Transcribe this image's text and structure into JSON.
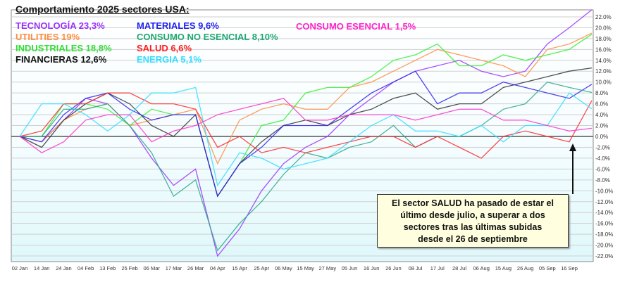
{
  "chart_data": {
    "type": "line",
    "title": "Comportamiento 2025 sectores USA:",
    "x": [
      "02 Jan",
      "14 Jan",
      "24 Jan",
      "04 Feb",
      "13 Feb",
      "25 Feb",
      "06 Mar",
      "17 Mar",
      "26 Mar",
      "04 Apr",
      "15 Apr",
      "25 Apr",
      "06 May",
      "15 May",
      "27 May",
      "05 Jun",
      "16 Jun",
      "26 Jun",
      "08 Jul",
      "17 Jul",
      "28 Jul",
      "06 Aug",
      "15 Aug",
      "26 Aug",
      "05 Sep",
      "16 Sep",
      ""
    ],
    "x_tick_labels": [
      "02 Jan",
      "14 Jan",
      "24 Jan",
      "04 Feb",
      "13 Feb",
      "25 Feb",
      "06 Mar",
      "17 Mar",
      "26 Mar",
      "04 Apr",
      "15 Apr",
      "25 Apr",
      "06 May",
      "15 May",
      "27 May",
      "05 Jun",
      "16 Jun",
      "26 Jun",
      "08 Jul",
      "17 Jul",
      "28 Jul",
      "06 Aug",
      "15 Aug",
      "26 Aug",
      "05 Sep",
      "16 Sep"
    ],
    "y_tick_labels": [
      "22.0%",
      "20.0%",
      "18.0%",
      "16.0%",
      "14.0%",
      "12.0%",
      "10.0%",
      "8.0%",
      "6.0%",
      "4.0%",
      "2.0%",
      "0.0%",
      "-2.0%",
      "-4.0%",
      "-6.0%",
      "-8.0%",
      "-10.0%",
      "-12.0%",
      "-14.0%",
      "-16.0%",
      "-18.0%",
      "-20.0%",
      "-22.0%"
    ],
    "ylim": [
      -23,
      23
    ],
    "xlabel": "",
    "ylabel": "",
    "grid": true,
    "series": [
      {
        "name": "TECNOLOGÍA 23,3%",
        "color": "#9b30ff",
        "values": [
          0,
          -1,
          3,
          7,
          6,
          2,
          -4,
          -9,
          -6,
          -22,
          -17,
          -10,
          -5,
          -2,
          0,
          4,
          7,
          10,
          12,
          13,
          14,
          12,
          11,
          12,
          17,
          20,
          23.3
        ]
      },
      {
        "name": "UTILITIES 19%",
        "color": "#ff8c40",
        "values": [
          0,
          -1,
          3,
          5,
          6,
          2,
          3,
          4,
          5,
          -5,
          3,
          5,
          6,
          5,
          5,
          9,
          10,
          12,
          14,
          16,
          15,
          14,
          13,
          11,
          16,
          17,
          19
        ]
      },
      {
        "name": "INDUSTRIALES 18,8%",
        "color": "#33ee33",
        "values": [
          0,
          0,
          6,
          6,
          5,
          2,
          5,
          4,
          4,
          -11,
          -5,
          2,
          3,
          8,
          9,
          9,
          11,
          14,
          15,
          17,
          13,
          13,
          15,
          14,
          15,
          16,
          18.8
        ]
      },
      {
        "name": "FINANCIERAS 12,6%",
        "color": "#333333",
        "values": [
          0,
          -2,
          3,
          6,
          8,
          6,
          2,
          0,
          4,
          -11,
          -5,
          -1,
          2,
          3,
          2,
          4,
          5,
          7,
          8,
          5,
          6,
          6,
          9,
          10,
          11,
          12,
          12.6
        ]
      },
      {
        "name": "MATERIALES 9,6%",
        "color": "#3322ee",
        "values": [
          0,
          -1,
          4,
          7,
          8,
          5,
          3,
          4,
          4,
          -11,
          -5,
          -2,
          2,
          2,
          2,
          5,
          8,
          10,
          12,
          6,
          8,
          8,
          10,
          9,
          8,
          7,
          9.6
        ]
      },
      {
        "name": "CONSUMO NO ESENCIAL 8,10%",
        "color": "#2aa88a",
        "values": [
          0,
          0,
          5,
          5,
          6,
          2,
          -3,
          -11,
          -8,
          -21,
          -16,
          -12,
          -7,
          -3,
          -4,
          -2,
          -1,
          2,
          -2,
          0,
          0,
          2,
          5,
          6,
          10,
          9,
          8.1
        ]
      },
      {
        "name": "SALUD 6,6%",
        "color": "#ff2a2a",
        "values": [
          0,
          1,
          6,
          6,
          8,
          8,
          6,
          6,
          5,
          -2,
          0,
          -3,
          -2,
          -3,
          -2,
          -1,
          0,
          0,
          -2,
          0,
          -2,
          -4,
          0,
          1,
          0,
          -1,
          6.6
        ]
      },
      {
        "name": "ENERGIA 5,1%",
        "color": "#33ddff",
        "values": [
          0,
          6,
          6,
          4,
          1,
          4,
          8,
          8,
          9,
          -9,
          -3,
          -4,
          -6,
          -5,
          -4,
          -1,
          2,
          4,
          1,
          1,
          0,
          2,
          -1,
          2,
          2,
          8,
          5.1
        ]
      },
      {
        "name": "CONSUMO ESENCIAL 1,5%",
        "color": "#ff33cc",
        "values": [
          0,
          -3,
          -1,
          3,
          4,
          4,
          -1,
          1,
          2,
          4,
          5,
          6,
          7,
          3,
          3,
          4,
          4,
          4,
          3,
          4,
          5,
          5,
          3,
          3,
          2,
          1,
          1.5
        ]
      }
    ],
    "annotation": {
      "lines": [
        "El sector SALUD ha pasado de estar el",
        "último desde julio, a superar a dos",
        "sectores tras las últimas subidas",
        "desde el 26 de septiembre"
      ],
      "arrow_to": "SALUD low at end of September"
    }
  }
}
